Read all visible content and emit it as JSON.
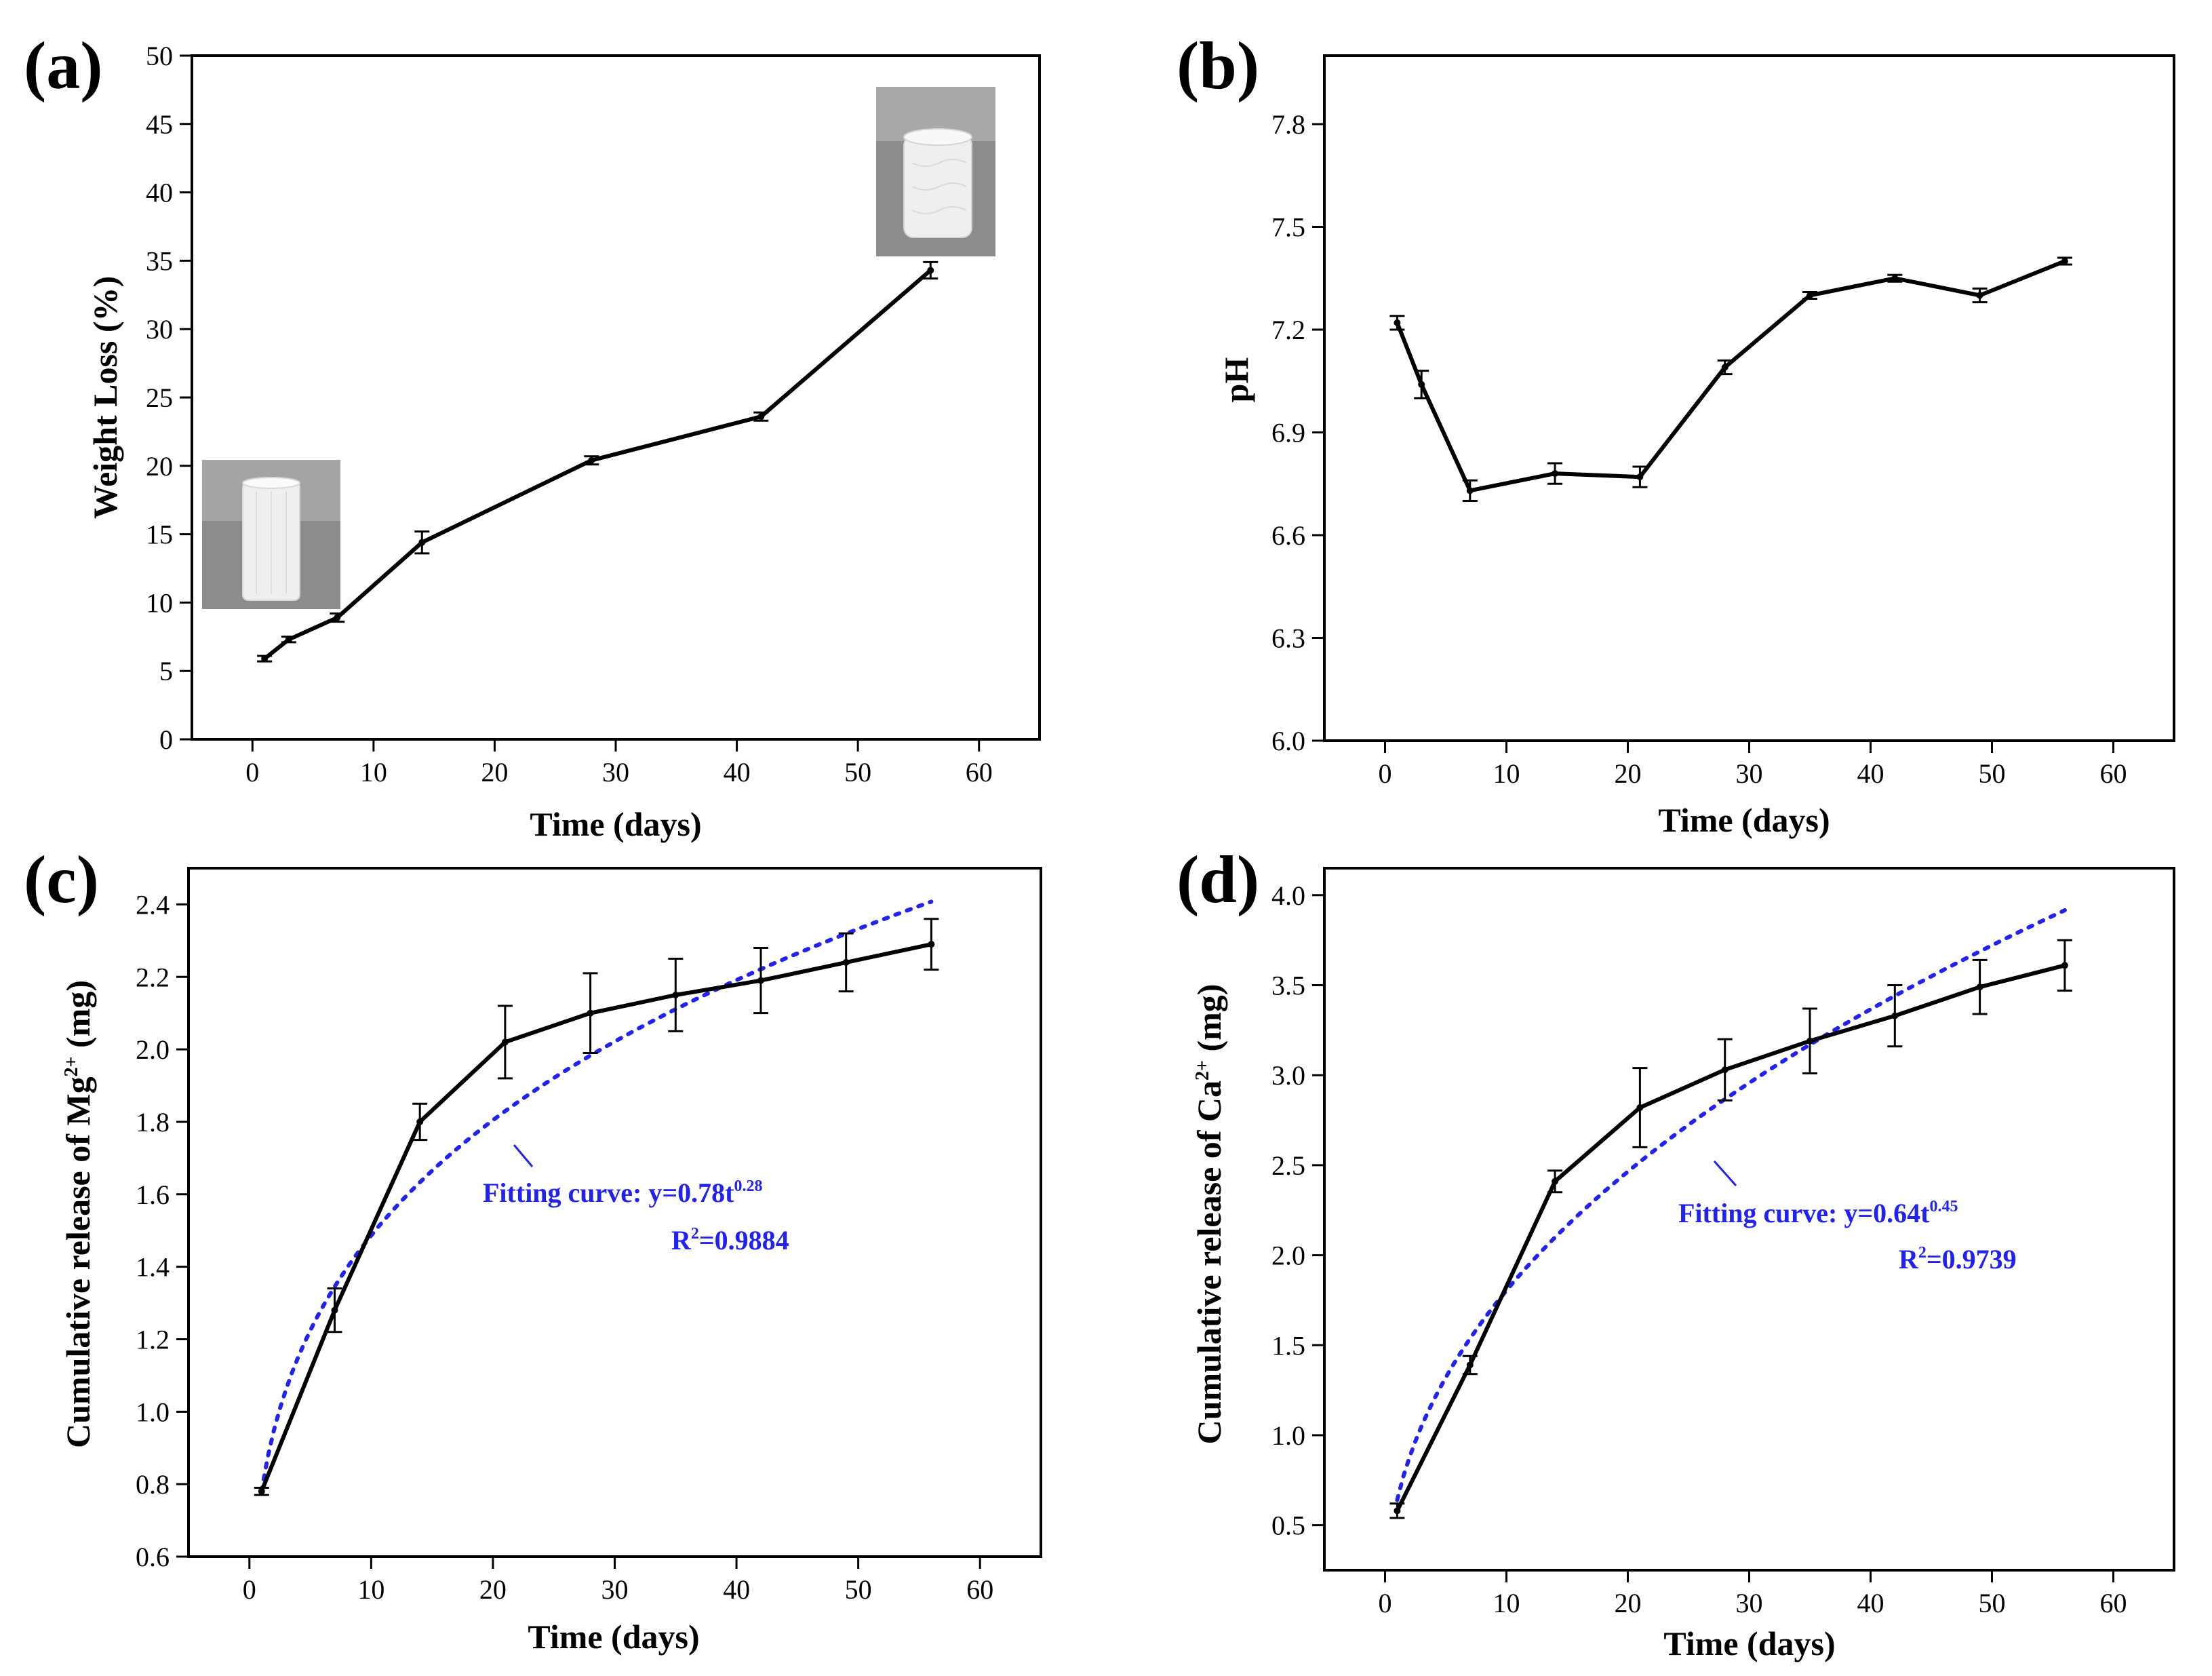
{
  "colors": {
    "data_line": "#000000",
    "fit_line": "#2222ee",
    "fit_text": "#2222ee",
    "photo_bg": "#8c8c8c",
    "scaffold": "#efefef"
  },
  "chart_data": [
    {
      "id": "a",
      "type": "line",
      "panel_label": "(a)",
      "xlabel": "Time (days)",
      "ylabel": "Weight Loss (%)",
      "xlim": [
        -5,
        65
      ],
      "ylim": [
        0,
        50
      ],
      "xticks": [
        "0",
        "10",
        "20",
        "30",
        "40",
        "50",
        "60"
      ],
      "yticks": [
        "0",
        "5",
        "10",
        "15",
        "20",
        "25",
        "30",
        "35",
        "40",
        "45",
        "50"
      ],
      "series": [
        {
          "name": "Weight loss",
          "x": [
            1,
            3,
            7,
            14,
            28,
            42,
            56
          ],
          "y": [
            5.9,
            7.3,
            8.9,
            14.4,
            20.4,
            23.6,
            34.3
          ],
          "err": [
            0.2,
            0.2,
            0.3,
            0.8,
            0.3,
            0.3,
            0.6
          ]
        }
      ],
      "insets": [
        "scaffold-photo-day-0",
        "scaffold-photo-day-56"
      ]
    },
    {
      "id": "b",
      "type": "line",
      "panel_label": "(b)",
      "xlabel": "Time (days)",
      "ylabel": "pH",
      "xlim": [
        -5,
        65
      ],
      "ylim": [
        6.0,
        8.0
      ],
      "xticks": [
        "0",
        "10",
        "20",
        "30",
        "40",
        "50",
        "60"
      ],
      "yticks": [
        "6.0",
        "6.3",
        "6.6",
        "6.9",
        "7.2",
        "7.5",
        "7.8"
      ],
      "series": [
        {
          "name": "pH",
          "x": [
            1,
            3,
            7,
            14,
            21,
            28,
            35,
            42,
            49,
            56
          ],
          "y": [
            7.22,
            7.04,
            6.73,
            6.78,
            6.77,
            7.09,
            7.3,
            7.35,
            7.3,
            7.4
          ],
          "err": [
            0.02,
            0.04,
            0.03,
            0.03,
            0.03,
            0.02,
            0.01,
            0.01,
            0.02,
            0.01
          ]
        }
      ]
    },
    {
      "id": "c",
      "type": "line",
      "panel_label": "(c)",
      "xlabel": "Time (days)",
      "ylabel": "Cumulative release of  Mg",
      "ylabel_sup": "2+",
      "ylabel_unit": " (mg)",
      "xlim": [
        -5,
        65
      ],
      "ylim": [
        0.6,
        2.5
      ],
      "xticks": [
        "0",
        "10",
        "20",
        "30",
        "40",
        "50",
        "60"
      ],
      "yticks": [
        "0.6",
        "0.8",
        "1.0",
        "1.2",
        "1.4",
        "1.6",
        "1.8",
        "2.0",
        "2.2",
        "2.4"
      ],
      "series": [
        {
          "name": "Mg2+ release",
          "x": [
            1,
            7,
            14,
            21,
            28,
            35,
            42,
            49,
            56
          ],
          "y": [
            0.78,
            1.28,
            1.8,
            2.02,
            2.1,
            2.15,
            2.19,
            2.24,
            2.29
          ],
          "err": [
            0.01,
            0.06,
            0.05,
            0.1,
            0.11,
            0.1,
            0.09,
            0.08,
            0.07
          ]
        }
      ],
      "fit": {
        "a": 0.78,
        "b": 0.28,
        "x_range": [
          1,
          56
        ],
        "label_main": "Fitting curve: y=0.78t",
        "label_exp": "0.28",
        "r2_prefix": "R",
        "r2_sup": "2",
        "r2_value": "=0.9884"
      }
    },
    {
      "id": "d",
      "type": "line",
      "panel_label": "(d)",
      "xlabel": "Time (days)",
      "ylabel": "Cumulative release of Ca",
      "ylabel_sup": "2+",
      "ylabel_unit": " (mg)",
      "xlim": [
        -5,
        65
      ],
      "ylim": [
        0.25,
        4.15
      ],
      "xticks": [
        "0",
        "10",
        "20",
        "30",
        "40",
        "50",
        "60"
      ],
      "yticks": [
        "0.5",
        "1.0",
        "1.5",
        "2.0",
        "2.5",
        "3.0",
        "3.5",
        "4.0"
      ],
      "series": [
        {
          "name": "Ca2+ release",
          "x": [
            1,
            7,
            14,
            21,
            28,
            35,
            42,
            49,
            56
          ],
          "y": [
            0.58,
            1.39,
            2.41,
            2.82,
            3.03,
            3.19,
            3.33,
            3.49,
            3.61
          ],
          "err": [
            0.04,
            0.05,
            0.06,
            0.22,
            0.17,
            0.18,
            0.17,
            0.15,
            0.14
          ]
        }
      ],
      "fit": {
        "a": 0.64,
        "b": 0.45,
        "x_range": [
          1,
          56
        ],
        "label_main": "Fitting curve: y=0.64t",
        "label_exp": "0.45",
        "r2_prefix": "R",
        "r2_sup": "2",
        "r2_value": "=0.9739"
      }
    }
  ]
}
